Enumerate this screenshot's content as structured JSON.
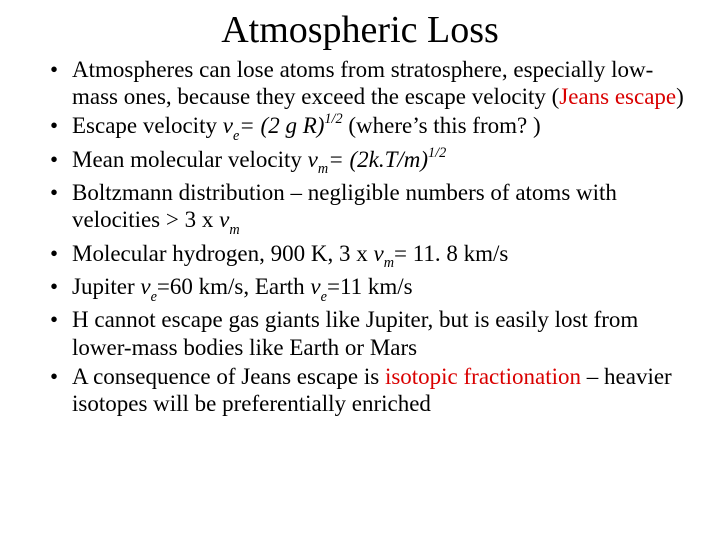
{
  "title": "Atmospheric Loss",
  "colors": {
    "text": "#000000",
    "accent": "#d90000",
    "background": "#ffffff"
  },
  "bullets": {
    "b0": {
      "t1": "Atmospheres can lose atoms from stratosphere, especially low-mass ones, because they exceed the escape velocity (",
      "red": "Jeans escape",
      "t2": ")"
    },
    "b1": {
      "t1": "Escape velocity ",
      "sym": "v",
      "sub": "e",
      "eq": "= (2 g R)",
      "sup": "1/2",
      "tail": "  (where’s this from? )"
    },
    "b2": {
      "t1": "Mean molecular velocity ",
      "sym": "v",
      "sub": "m",
      "eq": "= (2k.T/m)",
      "sup": "1/2"
    },
    "b3": {
      "t1": "Boltzmann distribution – negligible numbers of atoms with velocities > 3 x ",
      "sym": "v",
      "sub": "m"
    },
    "b4": {
      "t1": "Molecular hydrogen, 900 K,  3 x ",
      "sym": "v",
      "sub": "m",
      "tail": "= 11. 8 km/s"
    },
    "b5": {
      "t1": "Jupiter ",
      "sym1": "v",
      "sub1": "e",
      "mid": "=60 km/s, Earth ",
      "sym2": "v",
      "sub2": "e",
      "tail": "=11 km/s"
    },
    "b6": {
      "t1": "H cannot escape gas giants like Jupiter, but is easily lost from lower-mass bodies like Earth or Mars"
    },
    "b7": {
      "t1": "A consequence of Jeans escape is ",
      "red": "isotopic fractionation",
      "t2": " – heavier isotopes will be preferentially enriched"
    }
  }
}
